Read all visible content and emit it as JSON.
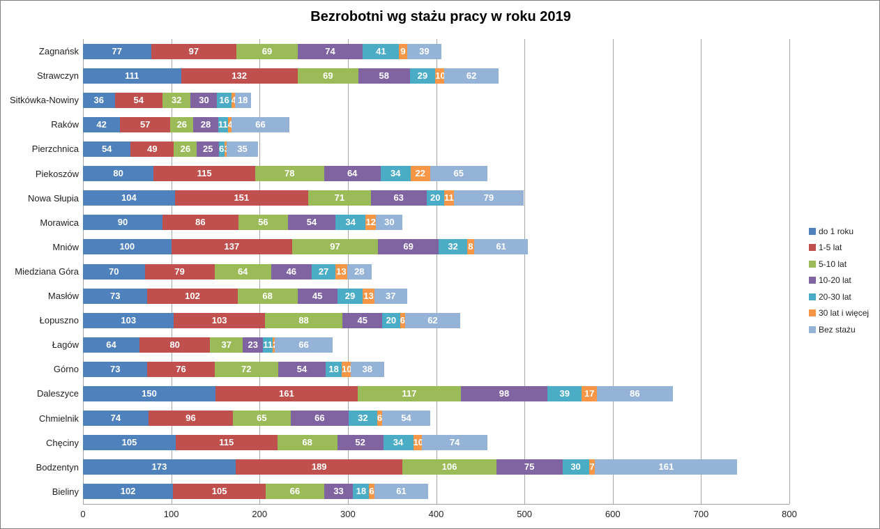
{
  "title": "Bezrobotni wg stażu pracy w roku 2019",
  "chart_data": {
    "type": "bar",
    "variant": "horizontal-stacked",
    "title": "Bezrobotni wg stażu pracy w roku 2019",
    "categories": [
      "Zagnańsk",
      "Strawczyn",
      "Sitkówka-Nowiny",
      "Raków",
      "Pierzchnica",
      "Piekoszów",
      "Nowa Słupia",
      "Morawica",
      "Mniów",
      "Miedziana Góra",
      "Masłów",
      "Łopuszno",
      "Łagów",
      "Górno",
      "Daleszyce",
      "Chmielnik",
      "Chęciny",
      "Bodzentyn",
      "Bieliny"
    ],
    "series": [
      {
        "name": "do 1 roku",
        "color": "#4F81BD",
        "values": [
          77,
          111,
          36,
          42,
          54,
          80,
          104,
          90,
          100,
          70,
          73,
          103,
          64,
          73,
          150,
          74,
          105,
          173,
          102
        ]
      },
      {
        "name": "1-5 lat",
        "color": "#C0504D",
        "values": [
          97,
          132,
          54,
          57,
          49,
          115,
          151,
          86,
          137,
          79,
          102,
          103,
          80,
          76,
          161,
          96,
          115,
          189,
          105
        ]
      },
      {
        "name": "5-10 lat",
        "color": "#9BBB59",
        "values": [
          69,
          69,
          32,
          26,
          26,
          78,
          71,
          56,
          97,
          64,
          68,
          88,
          37,
          72,
          117,
          65,
          68,
          106,
          66
        ]
      },
      {
        "name": "10-20 lat",
        "color": "#8064A2",
        "values": [
          74,
          58,
          30,
          28,
          25,
          64,
          63,
          54,
          69,
          46,
          45,
          45,
          23,
          54,
          98,
          66,
          52,
          75,
          33
        ]
      },
      {
        "name": "20-30 lat",
        "color": "#4BACC6",
        "values": [
          41,
          29,
          16,
          11,
          6,
          34,
          20,
          34,
          32,
          27,
          29,
          20,
          11,
          18,
          39,
          32,
          34,
          30,
          18
        ]
      },
      {
        "name": "30 lat i więcej",
        "color": "#F79646",
        "values": [
          9,
          10,
          4,
          4,
          3,
          22,
          11,
          12,
          8,
          13,
          13,
          6,
          2,
          10,
          17,
          6,
          10,
          7,
          6
        ]
      },
      {
        "name": "Bez stażu",
        "color": "#95B3D7",
        "values": [
          39,
          62,
          18,
          66,
          35,
          65,
          79,
          30,
          61,
          28,
          37,
          62,
          66,
          38,
          86,
          54,
          74,
          161,
          61
        ]
      }
    ],
    "x_ticks": [
      0,
      100,
      200,
      300,
      400,
      500,
      600,
      700,
      800
    ],
    "xlim": [
      0,
      800
    ],
    "ylabel": "",
    "xlabel": "",
    "grid": "vertical",
    "legend_position": "right",
    "data_labels": "white-bold-centered"
  },
  "colors": {
    "gridline": "#a6a6a6",
    "axis_line": "#9d9d9d",
    "frame_border": "#7f7f7f",
    "text": "#1f1f1f",
    "background": "#ffffff"
  }
}
